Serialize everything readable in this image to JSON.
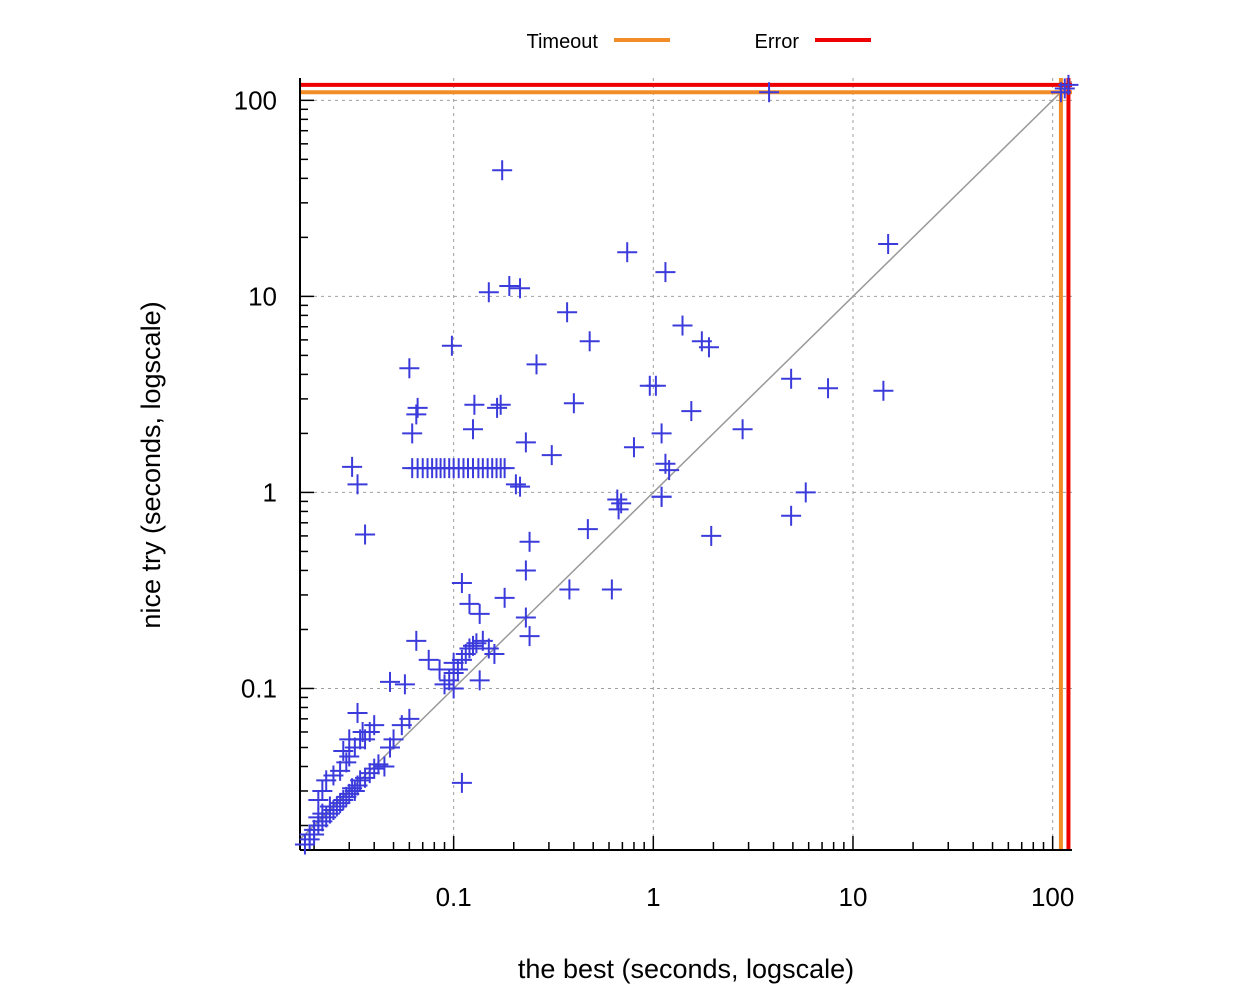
{
  "chart_data": {
    "type": "scatter",
    "title": "",
    "xlabel": "the best (seconds, logscale)",
    "ylabel": "nice try (seconds, logscale)",
    "xscale": "log",
    "yscale": "log",
    "xlim": [
      0.017,
      125
    ],
    "ylim": [
      0.015,
      130
    ],
    "grid": true,
    "legend_position": "top",
    "x_ticks": [
      0.1,
      1,
      10,
      100
    ],
    "x_tick_labels": [
      "0.1",
      "1",
      "10",
      "100"
    ],
    "y_ticks": [
      0.1,
      1,
      10,
      100
    ],
    "y_tick_labels": [
      "0.1",
      "1",
      "10",
      "100"
    ],
    "reference_lines": [
      {
        "name": "Timeout",
        "value": 110,
        "color": "#f28c28"
      },
      {
        "name": "Error",
        "value": 120,
        "color": "#ee0000"
      }
    ],
    "diagonal": {
      "color": "#999999"
    },
    "marker": {
      "symbol": "+",
      "color": "#3b3bdc"
    },
    "series": [
      {
        "points": [
          [
            0.018,
            0.016
          ],
          [
            0.019,
            0.017
          ],
          [
            0.019,
            0.018
          ],
          [
            0.02,
            0.018
          ],
          [
            0.02,
            0.019
          ],
          [
            0.021,
            0.02
          ],
          [
            0.021,
            0.022
          ],
          [
            0.022,
            0.021
          ],
          [
            0.022,
            0.023
          ],
          [
            0.023,
            0.022
          ],
          [
            0.024,
            0.023
          ],
          [
            0.024,
            0.025
          ],
          [
            0.025,
            0.024
          ],
          [
            0.026,
            0.025
          ],
          [
            0.027,
            0.026
          ],
          [
            0.028,
            0.027
          ],
          [
            0.029,
            0.028
          ],
          [
            0.03,
            0.029
          ],
          [
            0.031,
            0.031
          ],
          [
            0.032,
            0.03
          ],
          [
            0.033,
            0.032
          ],
          [
            0.034,
            0.034
          ],
          [
            0.036,
            0.035
          ],
          [
            0.038,
            0.037
          ],
          [
            0.04,
            0.039
          ],
          [
            0.042,
            0.041
          ],
          [
            0.021,
            0.027
          ],
          [
            0.022,
            0.03
          ],
          [
            0.023,
            0.034
          ],
          [
            0.025,
            0.036
          ],
          [
            0.027,
            0.038
          ],
          [
            0.029,
            0.042
          ],
          [
            0.03,
            0.045
          ],
          [
            0.032,
            0.05
          ],
          [
            0.034,
            0.055
          ],
          [
            0.036,
            0.055
          ],
          [
            0.038,
            0.06
          ],
          [
            0.04,
            0.065
          ],
          [
            0.033,
            0.075
          ],
          [
            0.035,
            0.06
          ],
          [
            0.03,
            0.055
          ],
          [
            0.028,
            0.048
          ],
          [
            0.045,
            0.04
          ],
          [
            0.048,
            0.05
          ],
          [
            0.05,
            0.055
          ],
          [
            0.055,
            0.065
          ],
          [
            0.06,
            0.07
          ],
          [
            0.057,
            0.105
          ],
          [
            0.048,
            0.108
          ],
          [
            0.065,
            0.175
          ],
          [
            0.075,
            0.14
          ],
          [
            0.085,
            0.125
          ],
          [
            0.09,
            0.105
          ],
          [
            0.095,
            0.11
          ],
          [
            0.1,
            0.12
          ],
          [
            0.1,
            0.135
          ],
          [
            0.11,
            0.14
          ],
          [
            0.115,
            0.15
          ],
          [
            0.12,
            0.16
          ],
          [
            0.125,
            0.165
          ],
          [
            0.13,
            0.17
          ],
          [
            0.14,
            0.175
          ],
          [
            0.15,
            0.16
          ],
          [
            0.16,
            0.15
          ],
          [
            0.1,
            0.1
          ],
          [
            0.105,
            0.125
          ],
          [
            0.135,
            0.11
          ],
          [
            0.11,
            0.345
          ],
          [
            0.12,
            0.27
          ],
          [
            0.135,
            0.24
          ],
          [
            0.18,
            0.29
          ],
          [
            0.23,
            0.4
          ],
          [
            0.24,
            0.56
          ],
          [
            0.24,
            0.185
          ],
          [
            0.23,
            0.23
          ],
          [
            0.38,
            0.32
          ],
          [
            0.62,
            0.32
          ],
          [
            0.47,
            0.65
          ],
          [
            0.67,
            0.82
          ],
          [
            0.66,
            0.92
          ],
          [
            0.69,
            0.88
          ],
          [
            1.1,
            0.95
          ],
          [
            1.95,
            0.6
          ],
          [
            4.9,
            0.76
          ],
          [
            5.8,
            1.0
          ],
          [
            0.031,
            1.35
          ],
          [
            0.033,
            1.1
          ],
          [
            0.036,
            0.61
          ],
          [
            0.062,
            1.33
          ],
          [
            0.066,
            1.33
          ],
          [
            0.07,
            1.33
          ],
          [
            0.074,
            1.33
          ],
          [
            0.078,
            1.33
          ],
          [
            0.082,
            1.33
          ],
          [
            0.086,
            1.33
          ],
          [
            0.09,
            1.33
          ],
          [
            0.095,
            1.33
          ],
          [
            0.1,
            1.33
          ],
          [
            0.106,
            1.33
          ],
          [
            0.112,
            1.33
          ],
          [
            0.118,
            1.33
          ],
          [
            0.125,
            1.33
          ],
          [
            0.133,
            1.33
          ],
          [
            0.14,
            1.33
          ],
          [
            0.148,
            1.33
          ],
          [
            0.156,
            1.33
          ],
          [
            0.164,
            1.33
          ],
          [
            0.172,
            1.33
          ],
          [
            0.18,
            1.33
          ],
          [
            0.062,
            2.0
          ],
          [
            0.065,
            2.5
          ],
          [
            0.066,
            2.7
          ],
          [
            0.06,
            4.3
          ],
          [
            0.098,
            5.6
          ],
          [
            0.125,
            2.1
          ],
          [
            0.127,
            2.8
          ],
          [
            0.165,
            2.7
          ],
          [
            0.172,
            2.8
          ],
          [
            0.205,
            1.1
          ],
          [
            0.215,
            1.07
          ],
          [
            0.23,
            1.8
          ],
          [
            0.26,
            4.5
          ],
          [
            0.31,
            1.55
          ],
          [
            0.37,
            8.3
          ],
          [
            0.4,
            2.85
          ],
          [
            0.48,
            5.9
          ],
          [
            0.8,
            1.7
          ],
          [
            0.96,
            3.5
          ],
          [
            1.03,
            3.5
          ],
          [
            1.1,
            2.0
          ],
          [
            1.15,
            1.4
          ],
          [
            1.2,
            1.3
          ],
          [
            1.1,
            0.95
          ],
          [
            0.74,
            16.8
          ],
          [
            1.15,
            13.3
          ],
          [
            1.4,
            7.1
          ],
          [
            1.55,
            2.6
          ],
          [
            1.75,
            5.9
          ],
          [
            1.9,
            5.5
          ],
          [
            2.8,
            2.1
          ],
          [
            4.9,
            3.8
          ],
          [
            7.5,
            3.4
          ],
          [
            14.2,
            3.3
          ],
          [
            15.0,
            18.5
          ],
          [
            0.15,
            10.5
          ],
          [
            0.175,
            44.0
          ],
          [
            0.19,
            11.3
          ],
          [
            0.215,
            11.0
          ],
          [
            3.8,
            110.0
          ],
          [
            110.0,
            110.0
          ],
          [
            115.0,
            115.0
          ],
          [
            120.0,
            120.0
          ],
          [
            0.11,
            0.033
          ]
        ]
      }
    ]
  }
}
